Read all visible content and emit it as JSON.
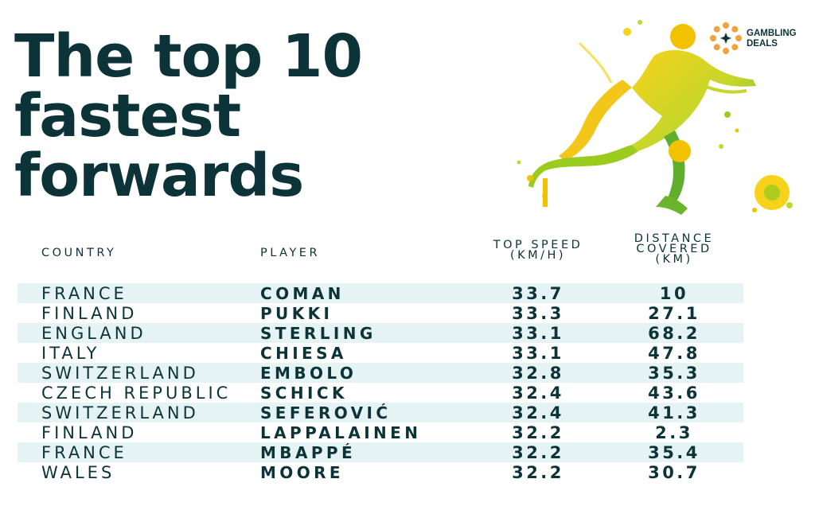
{
  "title_lines": [
    "The top 10",
    "fastest",
    "forwards"
  ],
  "brand": {
    "line1": "GAMBLING",
    "line2": "DEALS"
  },
  "colors": {
    "text": "#0c3438",
    "row_shade": "#e6f3f5",
    "art_yellow": "#f2c100",
    "art_green": "#9ccb1f"
  },
  "chart_data": {
    "type": "table",
    "columns": {
      "country": "COUNTRY",
      "player": "PLAYER",
      "speed": [
        "TOP SPEED",
        "(KM/H)"
      ],
      "distance": [
        "DISTANCE",
        "COVERED",
        "(KM)"
      ]
    },
    "rows": [
      {
        "country": "FRANCE",
        "player": "COMAN",
        "speed": "33.7",
        "distance": "10"
      },
      {
        "country": "FINLAND",
        "player": "PUKKI",
        "speed": "33.3",
        "distance": "27.1"
      },
      {
        "country": "ENGLAND",
        "player": "STERLING",
        "speed": "33.1",
        "distance": "68.2"
      },
      {
        "country": "ITALY",
        "player": "CHIESA",
        "speed": "33.1",
        "distance": "47.8"
      },
      {
        "country": "SWITZERLAND",
        "player": "EMBOLO",
        "speed": "32.8",
        "distance": "35.3"
      },
      {
        "country": "CZECH REPUBLIC",
        "player": "SCHICK",
        "speed": "32.4",
        "distance": "43.6"
      },
      {
        "country": "SWITZERLAND",
        "player": "SEFEROVIĆ",
        "speed": "32.4",
        "distance": "41.3"
      },
      {
        "country": "FINLAND",
        "player": "LAPPALAINEN",
        "speed": "32.2",
        "distance": "2.3"
      },
      {
        "country": "FRANCE",
        "player": "MBAPPÉ",
        "speed": "32.2",
        "distance": "35.4"
      },
      {
        "country": "WALES",
        "player": "MOORE",
        "speed": "32.2",
        "distance": "30.7"
      }
    ]
  }
}
